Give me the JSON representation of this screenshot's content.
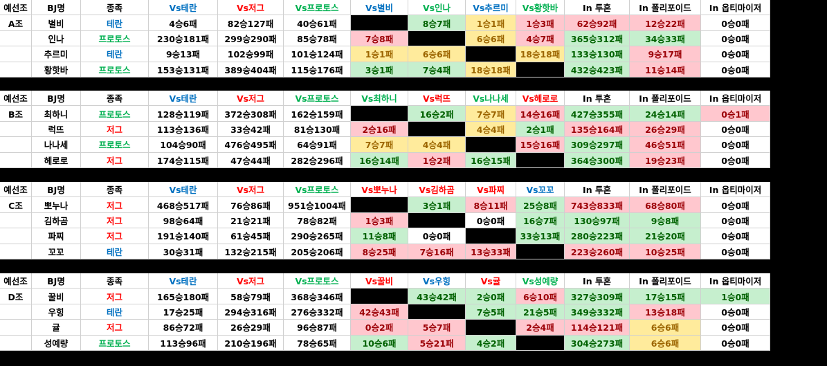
{
  "blocks": [
    {
      "group": "A조",
      "header": [
        "예선조",
        "BJ명",
        "종족",
        "Vs테란",
        "Vs저그",
        "Vs프로토스",
        "Vs별비",
        "Vs인나",
        "Vs추르미",
        "Vs황핫바",
        "In 투혼",
        "In 폴리포이드",
        "In 옵티마이저"
      ],
      "header_colors": [
        "black",
        "black",
        "black",
        "blue",
        "red",
        "green",
        "blue",
        "green",
        "blue",
        "green",
        "black",
        "black",
        "black"
      ],
      "rows": [
        {
          "race_color": "blue",
          "cells": [
            "별비",
            "테란",
            "4승6패",
            "82승127패",
            "40승61패",
            null,
            "8승7패",
            "1승1패",
            "1승3패",
            "62승92패",
            "12승22패",
            "0승0패"
          ],
          "fills": [
            "white",
            "white",
            "white",
            "white",
            "white",
            "black",
            "green",
            "yellow",
            "red",
            "red",
            "red",
            "white"
          ]
        },
        {
          "race_color": "green",
          "cells": [
            "인나",
            "프로토스",
            "230승181패",
            "299승290패",
            "85승78패",
            "7승8패",
            null,
            "6승6패",
            "4승7패",
            "365승312패",
            "34승33패",
            "0승0패"
          ],
          "fills": [
            "white",
            "white",
            "white",
            "white",
            "white",
            "red",
            "black",
            "yellow",
            "red",
            "green",
            "green",
            "white"
          ]
        },
        {
          "race_color": "blue",
          "cells": [
            "추르미",
            "테란",
            "9승13패",
            "102승99패",
            "101승124패",
            "1승1패",
            "6승6패",
            null,
            "18승18패",
            "133승130패",
            "9승17패",
            "0승0패"
          ],
          "fills": [
            "white",
            "white",
            "white",
            "white",
            "white",
            "yellow",
            "yellow",
            "black",
            "yellow",
            "green",
            "red",
            "white"
          ]
        },
        {
          "race_color": "green",
          "cells": [
            "황핫바",
            "프로토스",
            "153승131패",
            "389승404패",
            "115승176패",
            "3승1패",
            "7승4패",
            "18승18패",
            null,
            "432승423패",
            "11승14패",
            "0승0패"
          ],
          "fills": [
            "white",
            "white",
            "white",
            "white",
            "white",
            "green",
            "green",
            "yellow",
            "black",
            "green",
            "red",
            "white"
          ]
        }
      ]
    },
    {
      "group": "B조",
      "header": [
        "예선조",
        "BJ명",
        "종족",
        "Vs테란",
        "Vs저그",
        "Vs프로토스",
        "Vs최하니",
        "Vs럭뜨",
        "Vs나나세",
        "Vs헤로로",
        "In 투혼",
        "In 폴리포이드",
        "In 옵티마이저"
      ],
      "header_colors": [
        "black",
        "black",
        "black",
        "blue",
        "red",
        "green",
        "green",
        "red",
        "green",
        "red",
        "black",
        "black",
        "black"
      ],
      "rows": [
        {
          "race_color": "green",
          "cells": [
            "최하니",
            "프로토스",
            "128승119패",
            "372승308패",
            "162승159패",
            null,
            "16승2패",
            "7승7패",
            "14승16패",
            "427승355패",
            "24승14패",
            "0승1패"
          ],
          "fills": [
            "white",
            "white",
            "white",
            "white",
            "white",
            "black",
            "green",
            "yellow",
            "red",
            "green",
            "green",
            "red"
          ]
        },
        {
          "race_color": "red",
          "cells": [
            "럭뜨",
            "저그",
            "113승136패",
            "33승42패",
            "81승130패",
            "2승16패",
            null,
            "4승4패",
            "2승1패",
            "135승164패",
            "26승29패",
            "0승0패"
          ],
          "fills": [
            "white",
            "white",
            "white",
            "white",
            "white",
            "red",
            "black",
            "yellow",
            "green",
            "red",
            "red",
            "white"
          ]
        },
        {
          "race_color": "green",
          "cells": [
            "나나세",
            "프로토스",
            "104승90패",
            "476승495패",
            "64승91패",
            "7승7패",
            "4승4패",
            null,
            "15승16패",
            "309승297패",
            "46승51패",
            "0승0패"
          ],
          "fills": [
            "white",
            "white",
            "white",
            "white",
            "white",
            "yellow",
            "yellow",
            "black",
            "red",
            "green",
            "red",
            "white"
          ]
        },
        {
          "race_color": "red",
          "cells": [
            "헤로로",
            "저그",
            "174승115패",
            "47승44패",
            "282승296패",
            "16승14패",
            "1승2패",
            "16승15패",
            null,
            "364승300패",
            "19승23패",
            "0승0패"
          ],
          "fills": [
            "white",
            "white",
            "white",
            "white",
            "white",
            "green",
            "red",
            "green",
            "black",
            "green",
            "red",
            "white"
          ]
        }
      ]
    },
    {
      "group": "C조",
      "header": [
        "예선조",
        "BJ명",
        "종족",
        "Vs테란",
        "Vs저그",
        "Vs프로토스",
        "Vs뽀누나",
        "Vs김하곰",
        "Vs파찌",
        "Vs꼬꼬",
        "In 투혼",
        "In 폴리포이드",
        "In 옵티마이저"
      ],
      "header_colors": [
        "black",
        "black",
        "black",
        "blue",
        "red",
        "green",
        "red",
        "red",
        "red",
        "blue",
        "black",
        "black",
        "black"
      ],
      "rows": [
        {
          "race_color": "red",
          "cells": [
            "뽀누나",
            "저그",
            "468승517패",
            "76승86패",
            "951승1004패",
            null,
            "3승1패",
            "8승11패",
            "25승8패",
            "743승833패",
            "68승80패",
            "0승0패"
          ],
          "fills": [
            "white",
            "white",
            "white",
            "white",
            "white",
            "black",
            "green",
            "red",
            "green",
            "red",
            "red",
            "white"
          ]
        },
        {
          "race_color": "red",
          "cells": [
            "김하곰",
            "저그",
            "98승64패",
            "21승21패",
            "78승82패",
            "1승3패",
            null,
            "0승0패",
            "16승7패",
            "130승97패",
            "9승8패",
            "0승0패"
          ],
          "fills": [
            "white",
            "white",
            "white",
            "white",
            "white",
            "red",
            "black",
            "white",
            "green",
            "green",
            "green",
            "white"
          ]
        },
        {
          "race_color": "red",
          "cells": [
            "파찌",
            "저그",
            "191승140패",
            "61승45패",
            "290승265패",
            "11승8패",
            "0승0패",
            null,
            "33승13패",
            "280승223패",
            "21승20패",
            "0승0패"
          ],
          "fills": [
            "white",
            "white",
            "white",
            "white",
            "white",
            "green",
            "white",
            "black",
            "green",
            "green",
            "green",
            "white"
          ]
        },
        {
          "race_color": "blue",
          "cells": [
            "꼬꼬",
            "테란",
            "30승31패",
            "132승215패",
            "205승206패",
            "8승25패",
            "7승16패",
            "13승33패",
            null,
            "223승260패",
            "10승25패",
            "0승0패"
          ],
          "fills": [
            "white",
            "white",
            "white",
            "white",
            "white",
            "red",
            "red",
            "red",
            "black",
            "red",
            "red",
            "white"
          ]
        }
      ]
    },
    {
      "group": "D조",
      "header": [
        "예선조",
        "BJ명",
        "종족",
        "Vs테란",
        "Vs저그",
        "Vs프로토스",
        "Vs꿀비",
        "Vs우힝",
        "Vs귤",
        "Vs성예량",
        "In 투혼",
        "In 폴리포이드",
        "In 옵티마이저"
      ],
      "header_colors": [
        "black",
        "black",
        "black",
        "blue",
        "red",
        "green",
        "red",
        "blue",
        "red",
        "green",
        "black",
        "black",
        "black"
      ],
      "rows": [
        {
          "race_color": "red",
          "cells": [
            "꿀비",
            "저그",
            "165승180패",
            "58승79패",
            "368승346패",
            null,
            "43승42패",
            "2승0패",
            "6승10패",
            "327승309패",
            "17승15패",
            "1승0패"
          ],
          "fills": [
            "white",
            "white",
            "white",
            "white",
            "white",
            "black",
            "green",
            "green",
            "red",
            "green",
            "green",
            "green"
          ]
        },
        {
          "race_color": "blue",
          "cells": [
            "우힝",
            "테란",
            "17승25패",
            "294승316패",
            "276승332패",
            "42승43패",
            null,
            "7승5패",
            "21승5패",
            "349승332패",
            "13승18패",
            "0승0패"
          ],
          "fills": [
            "white",
            "white",
            "white",
            "white",
            "white",
            "red",
            "black",
            "green",
            "green",
            "green",
            "red",
            "white"
          ]
        },
        {
          "race_color": "red",
          "cells": [
            "귤",
            "저그",
            "86승72패",
            "26승29패",
            "96승87패",
            "0승2패",
            "5승7패",
            null,
            "2승4패",
            "114승121패",
            "6승6패",
            "0승0패"
          ],
          "fills": [
            "white",
            "white",
            "white",
            "white",
            "white",
            "red",
            "red",
            "black",
            "red",
            "red",
            "yellow",
            "white"
          ]
        },
        {
          "race_color": "green",
          "cells": [
            "성예량",
            "프로토스",
            "113승96패",
            "210승196패",
            "78승65패",
            "10승6패",
            "5승21패",
            "4승2패",
            null,
            "304승273패",
            "6승6패",
            "0승0패"
          ],
          "fills": [
            "white",
            "white",
            "white",
            "white",
            "white",
            "green",
            "red",
            "green",
            "black",
            "green",
            "yellow",
            "white"
          ]
        }
      ]
    }
  ]
}
